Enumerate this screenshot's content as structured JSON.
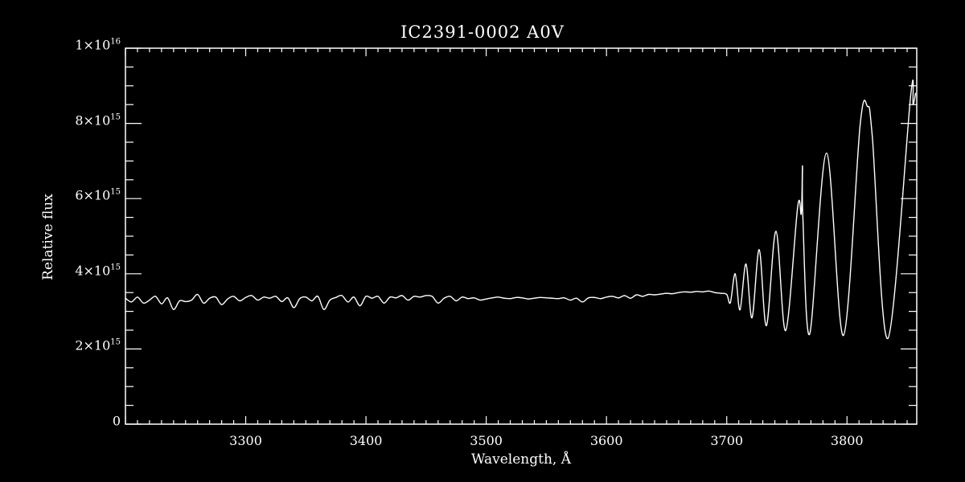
{
  "chart_data": {
    "type": "line",
    "title": "IC2391-0002  A0V",
    "xlabel": "Wavelength, Å",
    "ylabel": "Relative flux",
    "xlim": [
      3200,
      3858
    ],
    "ylim": [
      0,
      1e+16
    ],
    "x_ticks": [
      3300,
      3400,
      3500,
      3600,
      3700,
      3800
    ],
    "y_ticks": [
      {
        "value": 0,
        "mantissa": "0",
        "exp": ""
      },
      {
        "value": 2000000000000000.0,
        "mantissa": "2×10",
        "exp": "15"
      },
      {
        "value": 4000000000000000.0,
        "mantissa": "4×10",
        "exp": "15"
      },
      {
        "value": 6000000000000000.0,
        "mantissa": "6×10",
        "exp": "15"
      },
      {
        "value": 8000000000000000.0,
        "mantissa": "8×10",
        "exp": "15"
      },
      {
        "value": 1e+16,
        "mantissa": "1×10",
        "exp": "16"
      }
    ],
    "y_unit": 1000000000000000.0,
    "flat_start": 3200,
    "flat_step": 5,
    "flat_values": [
      3.35,
      3.25,
      3.38,
      3.22,
      3.3,
      3.4,
      3.2,
      3.36,
      3.05,
      3.28,
      3.26,
      3.3,
      3.45,
      3.22,
      3.35,
      3.38,
      3.18,
      3.33,
      3.4,
      3.28,
      3.37,
      3.42,
      3.3,
      3.38,
      3.35,
      3.4,
      3.26,
      3.36,
      3.1,
      3.34,
      3.38,
      3.28,
      3.4,
      3.05,
      3.3,
      3.37,
      3.42,
      3.25,
      3.38,
      3.15,
      3.4,
      3.35,
      3.4,
      3.22,
      3.38,
      3.36,
      3.42,
      3.3,
      3.4,
      3.38,
      3.42,
      3.4,
      3.22,
      3.35,
      3.4,
      3.28,
      3.38,
      3.34,
      3.36,
      3.3,
      3.33,
      3.36,
      3.38,
      3.35,
      3.34,
      3.37,
      3.36,
      3.33,
      3.35,
      3.37,
      3.36,
      3.35,
      3.34,
      3.36,
      3.3,
      3.35,
      3.25,
      3.36,
      3.37,
      3.34,
      3.38,
      3.4,
      3.36,
      3.42,
      3.35,
      3.44,
      3.4,
      3.45,
      3.44,
      3.46,
      3.48,
      3.47,
      3.5,
      3.52,
      3.51,
      3.53,
      3.52,
      3.54,
      3.5,
      3.48
    ],
    "tail_points": [
      [
        3700,
        3.45
      ],
      [
        3703,
        3.23
      ],
      [
        3707,
        4.0
      ],
      [
        3711,
        3.04
      ],
      [
        3716,
        4.26
      ],
      [
        3721,
        2.83
      ],
      [
        3727,
        4.64
      ],
      [
        3733,
        2.62
      ],
      [
        3741,
        5.13
      ],
      [
        3749,
        2.49
      ],
      [
        3759,
        5.79
      ],
      [
        3762,
        5.6
      ],
      [
        3763,
        6.87
      ],
      [
        3763.3,
        5.5
      ],
      [
        3769,
        2.4
      ],
      [
        3783,
        7.21
      ],
      [
        3797,
        2.36
      ],
      [
        3811,
        7.98
      ],
      [
        3817,
        8.45
      ],
      [
        3821,
        7.66
      ],
      [
        3834,
        2.28
      ],
      [
        3853,
        8.75
      ],
      [
        3855,
        8.5
      ],
      [
        3857,
        8.8
      ]
    ],
    "grid": false,
    "line_color": "#ffffff"
  }
}
